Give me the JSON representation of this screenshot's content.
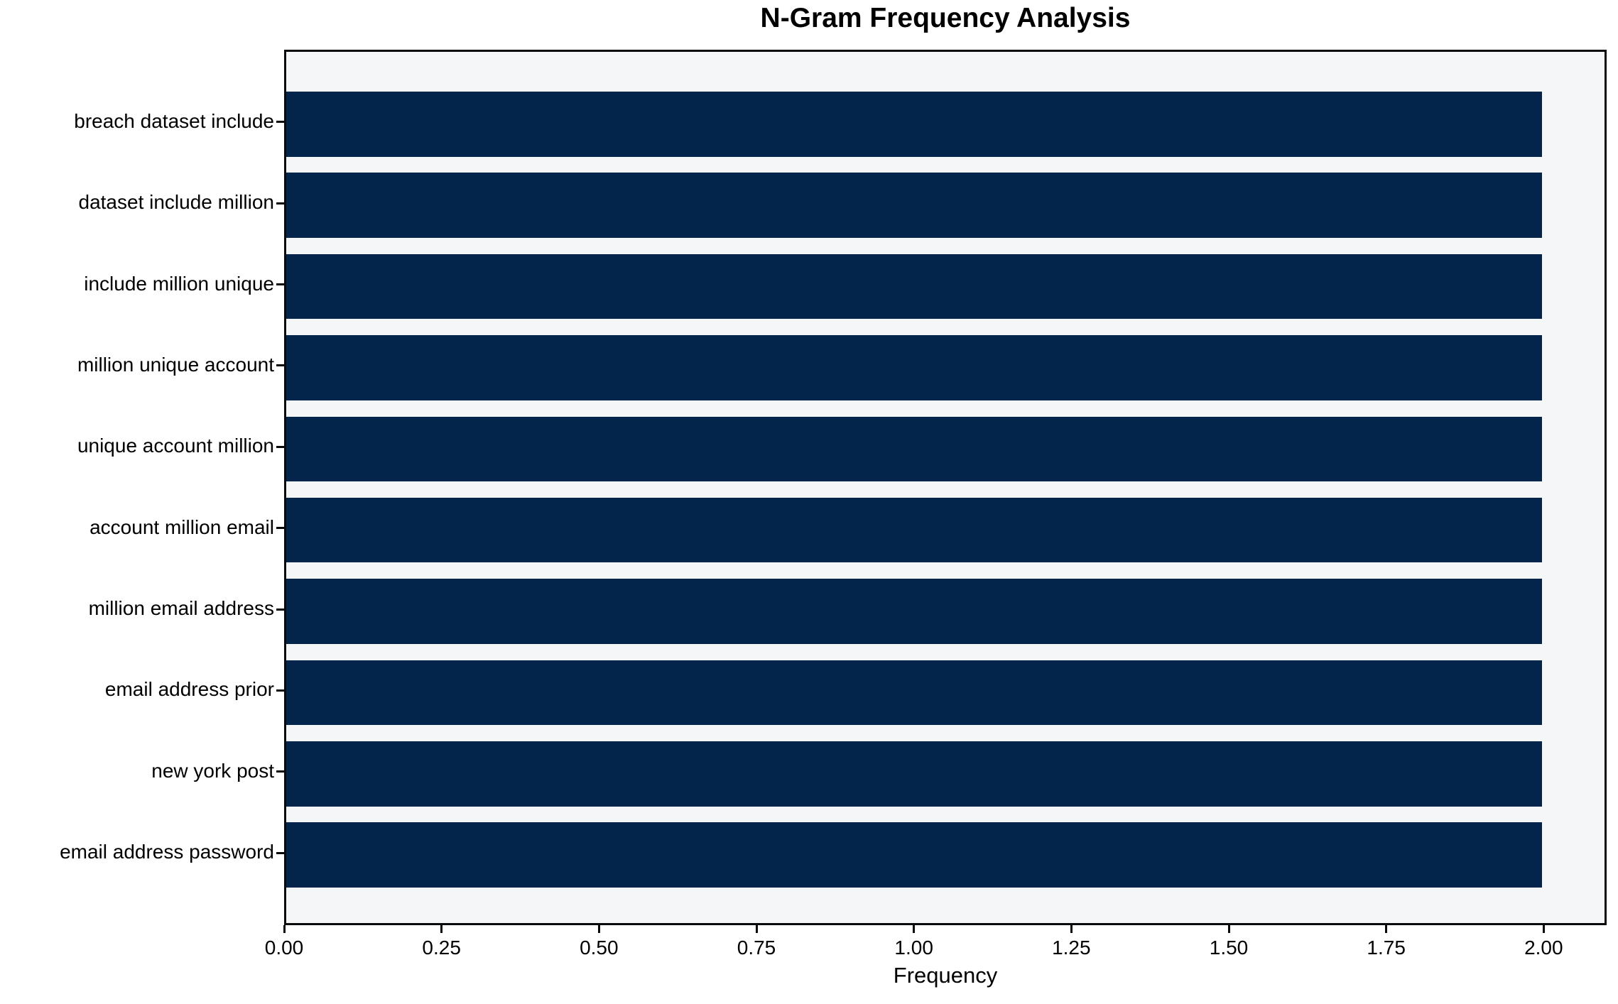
{
  "chart_data": {
    "type": "bar",
    "orientation": "horizontal",
    "title": "N-Gram Frequency Analysis",
    "xlabel": "Frequency",
    "ylabel": "",
    "categories": [
      "breach dataset include",
      "dataset include million",
      "include million unique",
      "million unique account",
      "unique account million",
      "account million email",
      "million email address",
      "email address prior",
      "new york post",
      "email address password"
    ],
    "values": [
      2,
      2,
      2,
      2,
      2,
      2,
      2,
      2,
      2,
      2
    ],
    "xlim": [
      0,
      2.1
    ],
    "xticks": [
      0.0,
      0.25,
      0.5,
      0.75,
      1.0,
      1.25,
      1.5,
      1.75,
      2.0
    ],
    "xtick_labels": [
      "0.00",
      "0.25",
      "0.50",
      "0.75",
      "1.00",
      "1.25",
      "1.50",
      "1.75",
      "2.00"
    ],
    "grid": false,
    "legend": null,
    "bar_height_frac": 0.8,
    "colors": {
      "bar": "#03254c",
      "plot_background": "#f5f6f7",
      "figure_background": "#ffffff",
      "spine": "#0a0a0a",
      "text": "#000000"
    }
  }
}
